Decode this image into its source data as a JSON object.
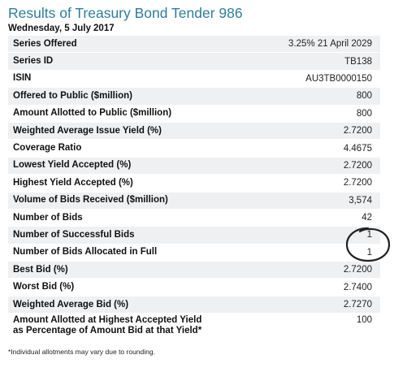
{
  "header": {
    "title": "Results of Treasury Bond Tender 986",
    "date": "Wednesday, 5 July 2017"
  },
  "rows": [
    {
      "label": "Series Offered",
      "value": "3.25% 21 April 2029"
    },
    {
      "label": "Series ID",
      "value": "TB138"
    },
    {
      "label": "ISIN",
      "value": "AU3TB0000150"
    },
    {
      "label": "Offered to Public ($million)",
      "value": "800"
    },
    {
      "label": "Amount Allotted to Public ($million)",
      "value": "800"
    },
    {
      "label": "Weighted Average Issue Yield (%)",
      "value": "2.7200"
    },
    {
      "label": "Coverage Ratio",
      "value": "4.4675"
    },
    {
      "label": "Lowest Yield Accepted (%)",
      "value": "2.7200"
    },
    {
      "label": "Highest Yield Accepted (%)",
      "value": "2.7200"
    },
    {
      "label": "Volume of Bids Received ($million)",
      "value": "3,574"
    },
    {
      "label": "Number of Bids",
      "value": "42"
    },
    {
      "label": "Number of Successful Bids",
      "value": "1"
    },
    {
      "label": "Number of Bids Allocated in Full",
      "value": "1"
    },
    {
      "label": "Best Bid (%)",
      "value": "2.7200"
    },
    {
      "label": "Worst Bid (%)",
      "value": "2.7400"
    },
    {
      "label": "Weighted Average Bid (%)",
      "value": "2.7270"
    },
    {
      "label_line1": "Amount Allotted at Highest Accepted Yield",
      "label_line2": "as Percentage of Amount Bid at that Yield*",
      "value": "100"
    }
  ],
  "footnote": "*Individual allotments may vary due to rounding.",
  "annotation": {
    "shape": "hand-drawn-ellipse",
    "color": "#222222"
  }
}
